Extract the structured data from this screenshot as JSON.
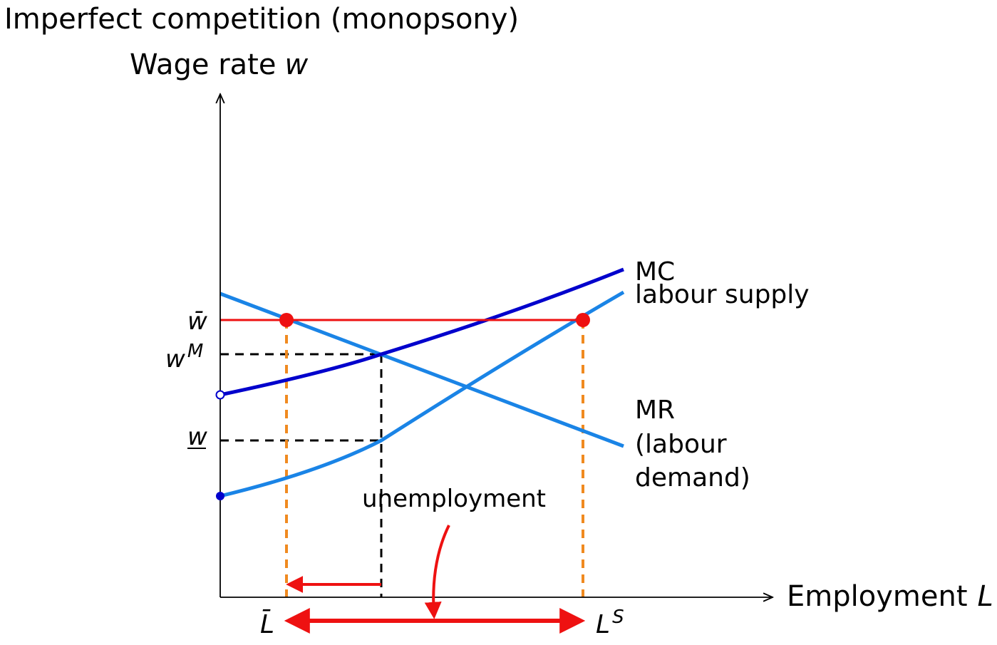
{
  "title": "Imperfect competition (monopsony)",
  "y_axis": {
    "label": "Wage rate",
    "var": "w"
  },
  "x_axis": {
    "label": "Employment",
    "var": "L"
  },
  "wage_labels": {
    "w_bar": "w̄",
    "w_m_base": "w",
    "w_m_sup": "M",
    "w_low": "w"
  },
  "employment_labels": {
    "l_bar": "L̄",
    "l_s_base": "L",
    "l_s_sup": "S"
  },
  "curve_labels": {
    "mc": "MC",
    "labour_supply": "labour supply",
    "mr_line1": "MR",
    "mr_line2": "(labour",
    "mr_line3": "demand)"
  },
  "annotation": "unemployment",
  "colors": {
    "mc": "#0000cc",
    "labour_supply": "#1a84e6",
    "mr": "#1a84e6",
    "min_wage": "#ee1111",
    "guides": "#000000",
    "drop_lines": "#f08a20",
    "arrows": "#ee1111"
  }
}
